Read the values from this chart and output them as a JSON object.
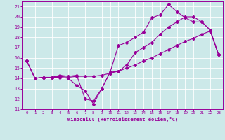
{
  "title": "",
  "xlabel": "Windchill (Refroidissement éolien,°C)",
  "ylabel": "",
  "bg_color": "#cce9e9",
  "line_color": "#990099",
  "grid_color": "#aadddd",
  "xlim": [
    -0.5,
    23.5
  ],
  "ylim": [
    11,
    21.5
  ],
  "xticks": [
    0,
    1,
    2,
    3,
    4,
    5,
    6,
    7,
    8,
    9,
    10,
    11,
    12,
    13,
    14,
    15,
    16,
    17,
    18,
    19,
    20,
    21,
    22,
    23
  ],
  "yticks": [
    11,
    12,
    13,
    14,
    15,
    16,
    17,
    18,
    19,
    20,
    21
  ],
  "line1_x": [
    0,
    1,
    2,
    3,
    4,
    5,
    6,
    7,
    8,
    9,
    10,
    11,
    12,
    13,
    14,
    15,
    16,
    17,
    18,
    19,
    20,
    21,
    22,
    23
  ],
  "line1_y": [
    15.7,
    14.0,
    14.1,
    14.1,
    14.1,
    14.0,
    13.3,
    12.8,
    11.5,
    13.0,
    14.6,
    17.2,
    17.5,
    18.0,
    18.5,
    19.9,
    20.2,
    21.2,
    20.5,
    19.9,
    19.5,
    19.5,
    18.7,
    16.3
  ],
  "line2_x": [
    0,
    1,
    2,
    3,
    4,
    5,
    6,
    7,
    8,
    9,
    10,
    11,
    12,
    13,
    14,
    15,
    16,
    17,
    18,
    19,
    20,
    21,
    22,
    23
  ],
  "line2_y": [
    15.7,
    14.0,
    14.1,
    14.1,
    14.3,
    14.2,
    14.3,
    12.0,
    11.8,
    13.0,
    14.6,
    14.7,
    15.3,
    16.5,
    17.0,
    17.5,
    18.3,
    19.0,
    19.5,
    20.0,
    20.0,
    19.5,
    18.7,
    16.3
  ],
  "line3_x": [
    0,
    1,
    2,
    3,
    4,
    5,
    6,
    7,
    8,
    9,
    10,
    11,
    12,
    13,
    14,
    15,
    16,
    17,
    18,
    19,
    20,
    21,
    22,
    23
  ],
  "line3_y": [
    15.7,
    14.0,
    14.1,
    14.1,
    14.2,
    14.1,
    14.2,
    14.2,
    14.2,
    14.3,
    14.5,
    14.7,
    15.0,
    15.3,
    15.7,
    16.0,
    16.4,
    16.8,
    17.2,
    17.6,
    17.9,
    18.3,
    18.6,
    16.3
  ]
}
